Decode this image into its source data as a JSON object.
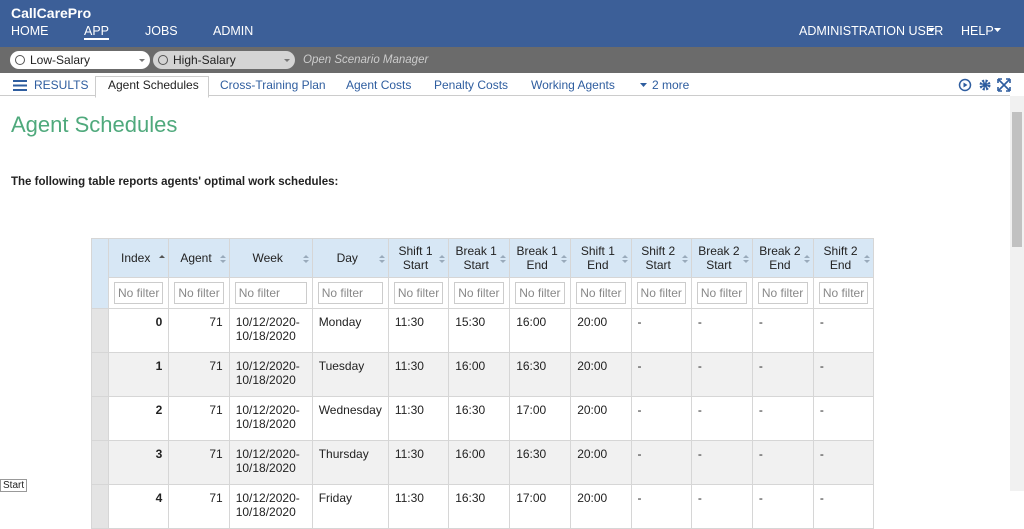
{
  "header": {
    "brand": "CallCarePro",
    "nav": [
      "HOME",
      "APP",
      "JOBS",
      "ADMIN"
    ],
    "user": "ADMINISTRATION USER",
    "help": "HELP"
  },
  "scenarios": {
    "items": [
      "Low-Salary Scenario",
      "High-Salary Scenario"
    ],
    "manager": "Open Scenario Manager"
  },
  "tabs": {
    "results": "RESULTS",
    "items": [
      "Agent Schedules",
      "Cross-Training Plan",
      "Agent Costs",
      "Penalty Costs",
      "Working Agents"
    ],
    "more": "2 more"
  },
  "page": {
    "title": "Agent Schedules",
    "intro": "The following table reports agents' optimal work schedules:"
  },
  "table": {
    "columns": [
      "Index",
      "Agent",
      "Week",
      "Day",
      "Shift 1 Start",
      "Break 1 Start",
      "Break 1 End",
      "Shift 1 End",
      "Shift 2 Start",
      "Break 2 Start",
      "Break 2 End",
      "Shift 2 End"
    ],
    "filter_placeholder": "No filter",
    "rows": [
      [
        0,
        71,
        "10/12/2020-10/18/2020",
        "Monday",
        "11:30",
        "15:30",
        "16:00",
        "20:00",
        "-",
        "-",
        "-",
        "-"
      ],
      [
        1,
        71,
        "10/12/2020-10/18/2020",
        "Tuesday",
        "11:30",
        "16:00",
        "16:30",
        "20:00",
        "-",
        "-",
        "-",
        "-"
      ],
      [
        2,
        71,
        "10/12/2020-10/18/2020",
        "Wednesday",
        "11:30",
        "16:30",
        "17:00",
        "20:00",
        "-",
        "-",
        "-",
        "-"
      ],
      [
        3,
        71,
        "10/12/2020-10/18/2020",
        "Thursday",
        "11:30",
        "16:00",
        "16:30",
        "20:00",
        "-",
        "-",
        "-",
        "-"
      ],
      [
        4,
        71,
        "10/12/2020-10/18/2020",
        "Friday",
        "11:30",
        "16:30",
        "17:00",
        "20:00",
        "-",
        "-",
        "-",
        "-"
      ]
    ]
  },
  "tooltip": "Start"
}
